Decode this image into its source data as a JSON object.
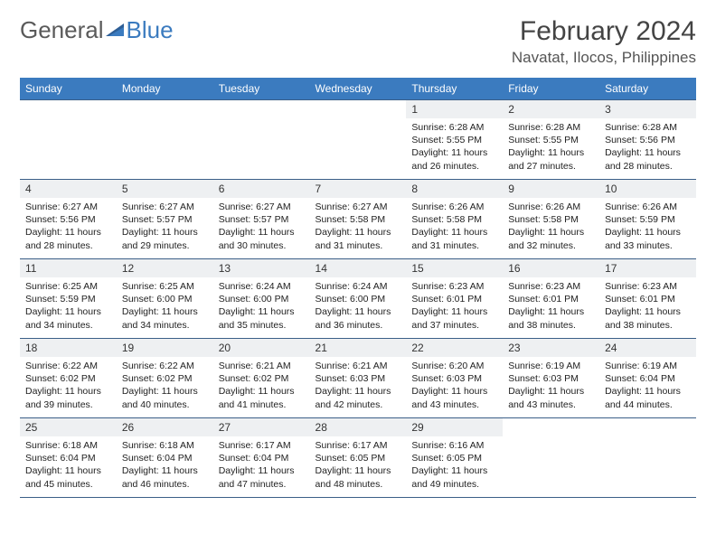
{
  "logo": {
    "general": "General",
    "blue": "Blue"
  },
  "header": {
    "month_title": "February 2024",
    "location": "Navatat, Ilocos, Philippines"
  },
  "colors": {
    "header_bg": "#3b7bbf",
    "header_text": "#ffffff",
    "daynum_bg": "#eef0f2",
    "border": "#3b5f88",
    "page_bg": "#ffffff"
  },
  "day_names": [
    "Sunday",
    "Monday",
    "Tuesday",
    "Wednesday",
    "Thursday",
    "Friday",
    "Saturday"
  ],
  "weeks": [
    [
      {
        "empty": true
      },
      {
        "empty": true
      },
      {
        "empty": true
      },
      {
        "empty": true
      },
      {
        "num": "1",
        "sunrise": "Sunrise: 6:28 AM",
        "sunset": "Sunset: 5:55 PM",
        "daylight1": "Daylight: 11 hours",
        "daylight2": "and 26 minutes."
      },
      {
        "num": "2",
        "sunrise": "Sunrise: 6:28 AM",
        "sunset": "Sunset: 5:55 PM",
        "daylight1": "Daylight: 11 hours",
        "daylight2": "and 27 minutes."
      },
      {
        "num": "3",
        "sunrise": "Sunrise: 6:28 AM",
        "sunset": "Sunset: 5:56 PM",
        "daylight1": "Daylight: 11 hours",
        "daylight2": "and 28 minutes."
      }
    ],
    [
      {
        "num": "4",
        "sunrise": "Sunrise: 6:27 AM",
        "sunset": "Sunset: 5:56 PM",
        "daylight1": "Daylight: 11 hours",
        "daylight2": "and 28 minutes."
      },
      {
        "num": "5",
        "sunrise": "Sunrise: 6:27 AM",
        "sunset": "Sunset: 5:57 PM",
        "daylight1": "Daylight: 11 hours",
        "daylight2": "and 29 minutes."
      },
      {
        "num": "6",
        "sunrise": "Sunrise: 6:27 AM",
        "sunset": "Sunset: 5:57 PM",
        "daylight1": "Daylight: 11 hours",
        "daylight2": "and 30 minutes."
      },
      {
        "num": "7",
        "sunrise": "Sunrise: 6:27 AM",
        "sunset": "Sunset: 5:58 PM",
        "daylight1": "Daylight: 11 hours",
        "daylight2": "and 31 minutes."
      },
      {
        "num": "8",
        "sunrise": "Sunrise: 6:26 AM",
        "sunset": "Sunset: 5:58 PM",
        "daylight1": "Daylight: 11 hours",
        "daylight2": "and 31 minutes."
      },
      {
        "num": "9",
        "sunrise": "Sunrise: 6:26 AM",
        "sunset": "Sunset: 5:58 PM",
        "daylight1": "Daylight: 11 hours",
        "daylight2": "and 32 minutes."
      },
      {
        "num": "10",
        "sunrise": "Sunrise: 6:26 AM",
        "sunset": "Sunset: 5:59 PM",
        "daylight1": "Daylight: 11 hours",
        "daylight2": "and 33 minutes."
      }
    ],
    [
      {
        "num": "11",
        "sunrise": "Sunrise: 6:25 AM",
        "sunset": "Sunset: 5:59 PM",
        "daylight1": "Daylight: 11 hours",
        "daylight2": "and 34 minutes."
      },
      {
        "num": "12",
        "sunrise": "Sunrise: 6:25 AM",
        "sunset": "Sunset: 6:00 PM",
        "daylight1": "Daylight: 11 hours",
        "daylight2": "and 34 minutes."
      },
      {
        "num": "13",
        "sunrise": "Sunrise: 6:24 AM",
        "sunset": "Sunset: 6:00 PM",
        "daylight1": "Daylight: 11 hours",
        "daylight2": "and 35 minutes."
      },
      {
        "num": "14",
        "sunrise": "Sunrise: 6:24 AM",
        "sunset": "Sunset: 6:00 PM",
        "daylight1": "Daylight: 11 hours",
        "daylight2": "and 36 minutes."
      },
      {
        "num": "15",
        "sunrise": "Sunrise: 6:23 AM",
        "sunset": "Sunset: 6:01 PM",
        "daylight1": "Daylight: 11 hours",
        "daylight2": "and 37 minutes."
      },
      {
        "num": "16",
        "sunrise": "Sunrise: 6:23 AM",
        "sunset": "Sunset: 6:01 PM",
        "daylight1": "Daylight: 11 hours",
        "daylight2": "and 38 minutes."
      },
      {
        "num": "17",
        "sunrise": "Sunrise: 6:23 AM",
        "sunset": "Sunset: 6:01 PM",
        "daylight1": "Daylight: 11 hours",
        "daylight2": "and 38 minutes."
      }
    ],
    [
      {
        "num": "18",
        "sunrise": "Sunrise: 6:22 AM",
        "sunset": "Sunset: 6:02 PM",
        "daylight1": "Daylight: 11 hours",
        "daylight2": "and 39 minutes."
      },
      {
        "num": "19",
        "sunrise": "Sunrise: 6:22 AM",
        "sunset": "Sunset: 6:02 PM",
        "daylight1": "Daylight: 11 hours",
        "daylight2": "and 40 minutes."
      },
      {
        "num": "20",
        "sunrise": "Sunrise: 6:21 AM",
        "sunset": "Sunset: 6:02 PM",
        "daylight1": "Daylight: 11 hours",
        "daylight2": "and 41 minutes."
      },
      {
        "num": "21",
        "sunrise": "Sunrise: 6:21 AM",
        "sunset": "Sunset: 6:03 PM",
        "daylight1": "Daylight: 11 hours",
        "daylight2": "and 42 minutes."
      },
      {
        "num": "22",
        "sunrise": "Sunrise: 6:20 AM",
        "sunset": "Sunset: 6:03 PM",
        "daylight1": "Daylight: 11 hours",
        "daylight2": "and 43 minutes."
      },
      {
        "num": "23",
        "sunrise": "Sunrise: 6:19 AM",
        "sunset": "Sunset: 6:03 PM",
        "daylight1": "Daylight: 11 hours",
        "daylight2": "and 43 minutes."
      },
      {
        "num": "24",
        "sunrise": "Sunrise: 6:19 AM",
        "sunset": "Sunset: 6:04 PM",
        "daylight1": "Daylight: 11 hours",
        "daylight2": "and 44 minutes."
      }
    ],
    [
      {
        "num": "25",
        "sunrise": "Sunrise: 6:18 AM",
        "sunset": "Sunset: 6:04 PM",
        "daylight1": "Daylight: 11 hours",
        "daylight2": "and 45 minutes."
      },
      {
        "num": "26",
        "sunrise": "Sunrise: 6:18 AM",
        "sunset": "Sunset: 6:04 PM",
        "daylight1": "Daylight: 11 hours",
        "daylight2": "and 46 minutes."
      },
      {
        "num": "27",
        "sunrise": "Sunrise: 6:17 AM",
        "sunset": "Sunset: 6:04 PM",
        "daylight1": "Daylight: 11 hours",
        "daylight2": "and 47 minutes."
      },
      {
        "num": "28",
        "sunrise": "Sunrise: 6:17 AM",
        "sunset": "Sunset: 6:05 PM",
        "daylight1": "Daylight: 11 hours",
        "daylight2": "and 48 minutes."
      },
      {
        "num": "29",
        "sunrise": "Sunrise: 6:16 AM",
        "sunset": "Sunset: 6:05 PM",
        "daylight1": "Daylight: 11 hours",
        "daylight2": "and 49 minutes."
      },
      {
        "empty": true
      },
      {
        "empty": true
      }
    ]
  ]
}
